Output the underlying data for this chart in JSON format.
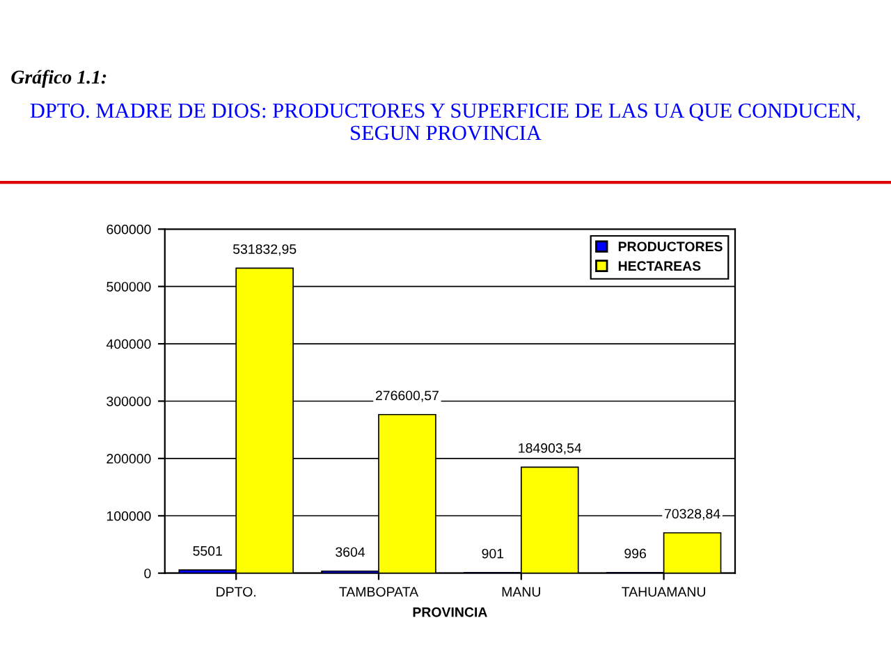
{
  "chart_data": {
    "type": "bar",
    "title": "DPTO. MADRE DE DIOS: PRODUCTORES Y SUPERFICIE DE LAS UA QUE CONDUCEN, SEGUN PROVINCIA",
    "annotations": [
      "Gráfico 1.1:"
    ],
    "xlabel": "PROVINCIA",
    "categories": [
      "DPTO.",
      "TAMBOPATA",
      "MANU",
      "TAHUAMANU"
    ],
    "series": [
      {
        "name": "PRODUCTORES",
        "color": "#0000ff",
        "values": [
          5501,
          3604,
          901,
          996
        ],
        "value_labels": [
          "5501",
          "3604",
          "901",
          "996"
        ]
      },
      {
        "name": "HECTAREAS",
        "color": "#ffff00",
        "values": [
          531832.95,
          276600.57,
          184903.54,
          70328.84
        ],
        "value_labels": [
          "531832,95",
          "276600,57",
          "184903,54",
          "70328,84"
        ]
      }
    ],
    "ylim": [
      0,
      600000
    ],
    "yticks": [
      0,
      100000,
      200000,
      300000,
      400000,
      500000,
      600000
    ],
    "grid": "y",
    "legend": "top right"
  }
}
